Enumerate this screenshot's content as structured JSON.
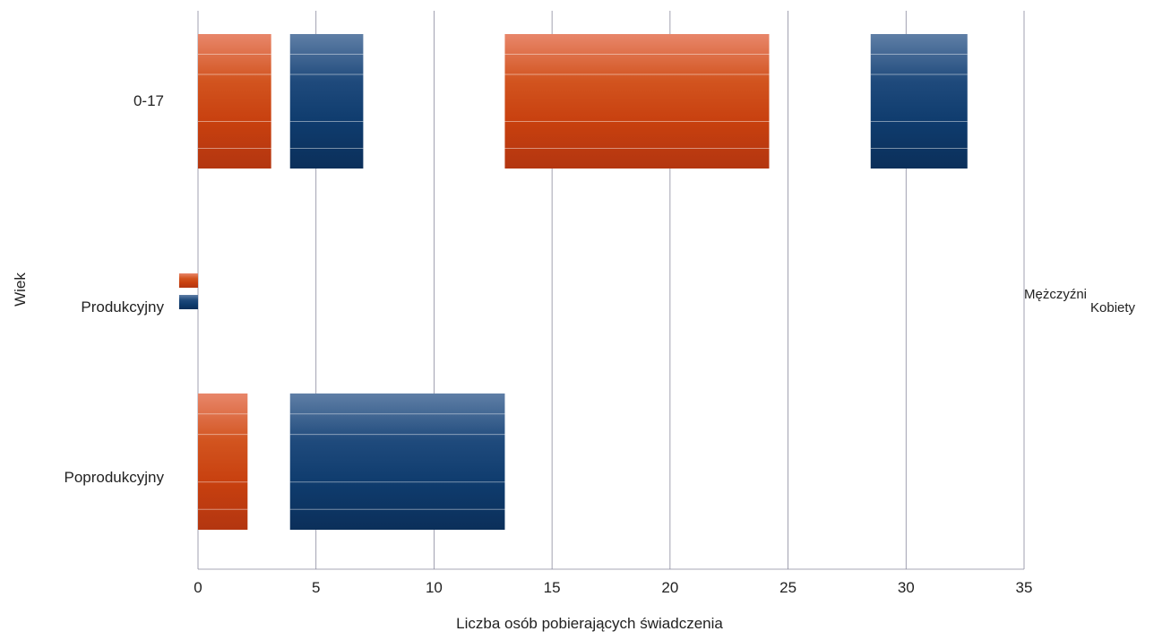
{
  "chart_data": {
    "type": "bar",
    "orientation": "horizontal",
    "stacked": true,
    "xlabel": "Liczba osób pobierających świadczenia",
    "ylabel": "Wiek",
    "xlim": [
      0,
      35
    ],
    "xticks": [
      0,
      5,
      10,
      15,
      20,
      25,
      30,
      35
    ],
    "categories": [
      "0-17",
      "Produkcyjny",
      "Poprodukcyjny"
    ],
    "series": [
      {
        "name": "Mężczyźni",
        "color": "#c0360f",
        "segments": [
          [
            {
              "start": 0,
              "end": 3.1
            },
            {
              "start": 13,
              "end": 24.2
            }
          ],
          [
            {
              "start": -0.8,
              "end": 0
            }
          ],
          [
            {
              "start": 0,
              "end": 2.1
            }
          ]
        ]
      },
      {
        "name": "Kobiety",
        "color": "#0f3c6e",
        "segments": [
          [
            {
              "start": 3.9,
              "end": 7
            },
            {
              "start": 28.5,
              "end": 32.6
            }
          ],
          [
            {
              "start": -0.8,
              "end": 0
            }
          ],
          [
            {
              "start": 3.9,
              "end": 13
            }
          ]
        ]
      }
    ],
    "grid": {
      "x": true,
      "y": false
    },
    "legend_position": "right"
  }
}
